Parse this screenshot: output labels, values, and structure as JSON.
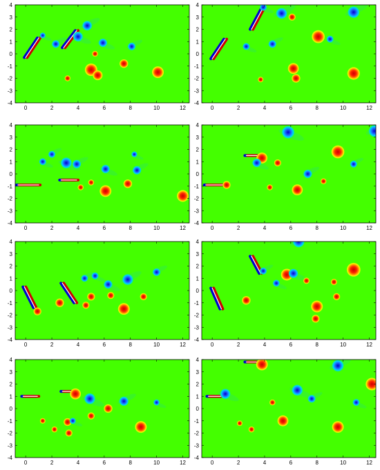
{
  "figure": {
    "panel_count": 8,
    "layout": "4 rows x 2 columns",
    "colormap": [
      "#0000cc",
      "#1f6dff",
      "#00c8ff",
      "#00e8c0",
      "#33ee44",
      "#44ff00",
      "#c8ff00",
      "#ffee00",
      "#ff8800",
      "#ff2200",
      "#cc0000"
    ],
    "background_color": "#44ff00"
  },
  "chart_data": [
    {
      "type": "heatmap",
      "panel": "row1-left",
      "xlim": [
        -0.8,
        12.5
      ],
      "ylim": [
        -4,
        4
      ],
      "x_ticks": [
        "0",
        "2",
        "4",
        "6",
        "8",
        "10",
        "12"
      ],
      "y_ticks": [
        "-4",
        "-3",
        "-2",
        "-1",
        "0",
        "1",
        "2",
        "3",
        "4"
      ],
      "vortices": [
        {
          "x": 5.0,
          "y": -1.3,
          "r": 0.32,
          "sign": 1
        },
        {
          "x": 5.5,
          "y": -1.75,
          "r": 0.25,
          "sign": 1
        },
        {
          "x": 7.5,
          "y": -0.8,
          "r": 0.22,
          "sign": 1
        },
        {
          "x": 10.1,
          "y": -1.5,
          "r": 0.3,
          "sign": 1
        },
        {
          "x": 4.7,
          "y": 2.3,
          "r": 0.25,
          "sign": -1
        },
        {
          "x": 4.0,
          "y": 1.4,
          "r": 0.25,
          "sign": -1
        },
        {
          "x": 2.3,
          "y": 0.8,
          "r": 0.2,
          "sign": -1
        },
        {
          "x": 5.9,
          "y": 0.9,
          "r": 0.22,
          "sign": -1
        },
        {
          "x": 8.1,
          "y": 0.6,
          "r": 0.2,
          "sign": -1
        },
        {
          "x": 3.2,
          "y": -2.0,
          "r": 0.15,
          "sign": 1
        },
        {
          "x": 5.3,
          "y": 0.0,
          "r": 0.15,
          "sign": 1
        },
        {
          "x": 1.3,
          "y": 1.5,
          "r": 0.15,
          "sign": -1
        }
      ],
      "plates": [
        {
          "x1": 0.0,
          "y1": -0.3,
          "x2": 1.0,
          "y2": 1.3
        },
        {
          "x1": 2.9,
          "y1": 0.5,
          "x2": 3.9,
          "y2": 1.9
        }
      ]
    },
    {
      "type": "heatmap",
      "panel": "row1-right",
      "xlim": [
        -0.8,
        12.5
      ],
      "ylim": [
        -4,
        4
      ],
      "x_ticks": [
        "0",
        "2",
        "4",
        "6",
        "8",
        "10",
        "12"
      ],
      "y_ticks": [
        "-4",
        "-3",
        "-2",
        "-1",
        "0",
        "1",
        "2",
        "3",
        "4"
      ],
      "vortices": [
        {
          "x": 8.1,
          "y": 1.4,
          "r": 0.33,
          "sign": 1
        },
        {
          "x": 6.2,
          "y": -1.2,
          "r": 0.28,
          "sign": 1
        },
        {
          "x": 10.8,
          "y": -1.6,
          "r": 0.32,
          "sign": 1
        },
        {
          "x": 6.4,
          "y": -2.0,
          "r": 0.22,
          "sign": 1
        },
        {
          "x": 5.3,
          "y": 3.3,
          "r": 0.28,
          "sign": -1
        },
        {
          "x": 3.9,
          "y": 3.8,
          "r": 0.18,
          "sign": -1
        },
        {
          "x": 10.8,
          "y": 3.4,
          "r": 0.3,
          "sign": -1
        },
        {
          "x": 2.6,
          "y": 0.6,
          "r": 0.18,
          "sign": -1
        },
        {
          "x": 4.6,
          "y": 0.8,
          "r": 0.2,
          "sign": -1
        },
        {
          "x": 9.0,
          "y": 1.2,
          "r": 0.18,
          "sign": -1
        },
        {
          "x": 6.1,
          "y": 3.0,
          "r": 0.18,
          "sign": 1
        },
        {
          "x": 3.7,
          "y": -2.1,
          "r": 0.14,
          "sign": 1
        }
      ],
      "plates": [
        {
          "x1": 0.0,
          "y1": -0.4,
          "x2": 1.0,
          "y2": 1.2
        },
        {
          "x1": 3.0,
          "y1": 2.0,
          "x2": 3.9,
          "y2": 3.8
        }
      ]
    },
    {
      "type": "heatmap",
      "panel": "row2-left",
      "xlim": [
        -0.8,
        12.5
      ],
      "ylim": [
        -4,
        4
      ],
      "x_ticks": [
        "0",
        "2",
        "4",
        "6",
        "8",
        "10",
        "12"
      ],
      "y_ticks": [
        "-4",
        "-3",
        "-2",
        "-1",
        "0",
        "1",
        "2",
        "3",
        "4"
      ],
      "vortices": [
        {
          "x": 6.1,
          "y": -1.4,
          "r": 0.3,
          "sign": 1
        },
        {
          "x": 7.8,
          "y": -0.8,
          "r": 0.22,
          "sign": 1
        },
        {
          "x": 12.0,
          "y": -1.8,
          "r": 0.3,
          "sign": 1
        },
        {
          "x": 3.1,
          "y": 0.9,
          "r": 0.28,
          "sign": -1
        },
        {
          "x": 3.9,
          "y": 0.8,
          "r": 0.22,
          "sign": -1
        },
        {
          "x": 1.3,
          "y": 1.0,
          "r": 0.18,
          "sign": -1
        },
        {
          "x": 2.0,
          "y": 1.6,
          "r": 0.18,
          "sign": -1
        },
        {
          "x": 6.1,
          "y": 0.4,
          "r": 0.22,
          "sign": -1
        },
        {
          "x": 8.5,
          "y": 0.3,
          "r": 0.22,
          "sign": -1
        },
        {
          "x": 5.0,
          "y": -0.7,
          "r": 0.15,
          "sign": 1
        },
        {
          "x": 4.2,
          "y": -1.1,
          "r": 0.15,
          "sign": 1
        },
        {
          "x": 8.3,
          "y": 1.6,
          "r": 0.15,
          "sign": -1
        }
      ],
      "plates": [
        {
          "x1": -0.6,
          "y1": -0.9,
          "x2": 1.0,
          "y2": -0.9
        },
        {
          "x1": 2.7,
          "y1": -0.5,
          "x2": 3.9,
          "y2": -0.5
        }
      ]
    },
    {
      "type": "heatmap",
      "panel": "row2-right",
      "xlim": [
        -0.8,
        12.5
      ],
      "ylim": [
        -4,
        4
      ],
      "x_ticks": [
        "0",
        "2",
        "4",
        "6",
        "8",
        "10",
        "12"
      ],
      "y_ticks": [
        "-4",
        "-3",
        "-2",
        "-1",
        "0",
        "1",
        "2",
        "3",
        "4"
      ],
      "vortices": [
        {
          "x": 9.6,
          "y": 1.8,
          "r": 0.33,
          "sign": 1
        },
        {
          "x": 6.5,
          "y": -1.3,
          "r": 0.28,
          "sign": 1
        },
        {
          "x": 3.8,
          "y": 1.3,
          "r": 0.28,
          "sign": 1
        },
        {
          "x": 5.8,
          "y": 3.4,
          "r": 0.32,
          "sign": -1
        },
        {
          "x": 12.4,
          "y": 3.5,
          "r": 0.3,
          "sign": -1
        },
        {
          "x": 3.4,
          "y": 0.9,
          "r": 0.22,
          "sign": -1
        },
        {
          "x": 7.3,
          "y": 0.0,
          "r": 0.22,
          "sign": -1
        },
        {
          "x": 1.1,
          "y": -0.9,
          "r": 0.2,
          "sign": 1
        },
        {
          "x": 5.0,
          "y": 0.9,
          "r": 0.18,
          "sign": 1
        },
        {
          "x": 8.5,
          "y": -0.6,
          "r": 0.15,
          "sign": 1
        },
        {
          "x": 10.8,
          "y": 0.8,
          "r": 0.18,
          "sign": -1
        },
        {
          "x": 4.4,
          "y": -1.1,
          "r": 0.15,
          "sign": 1
        }
      ],
      "plates": [
        {
          "x1": -0.5,
          "y1": -0.9,
          "x2": 1.0,
          "y2": -0.9
        },
        {
          "x1": 2.6,
          "y1": 1.5,
          "x2": 3.8,
          "y2": 1.5
        }
      ]
    },
    {
      "type": "heatmap",
      "panel": "row3-left",
      "xlim": [
        -0.8,
        12.5
      ],
      "ylim": [
        -4,
        4
      ],
      "x_ticks": [
        "0",
        "2",
        "4",
        "6",
        "8",
        "10",
        "12"
      ],
      "y_ticks": [
        "-4",
        "-3",
        "-2",
        "-1",
        "0",
        "1",
        "2",
        "3",
        "4"
      ],
      "vortices": [
        {
          "x": 7.5,
          "y": -1.5,
          "r": 0.3,
          "sign": 1
        },
        {
          "x": 2.6,
          "y": -1.0,
          "r": 0.22,
          "sign": 1
        },
        {
          "x": 0.9,
          "y": -1.7,
          "r": 0.2,
          "sign": 1
        },
        {
          "x": 4.6,
          "y": -1.2,
          "r": 0.18,
          "sign": 1
        },
        {
          "x": 5.0,
          "y": -0.5,
          "r": 0.2,
          "sign": 1
        },
        {
          "x": 6.5,
          "y": -0.4,
          "r": 0.18,
          "sign": 1
        },
        {
          "x": 7.8,
          "y": 0.9,
          "r": 0.28,
          "sign": -1
        },
        {
          "x": 6.3,
          "y": 0.5,
          "r": 0.22,
          "sign": -1
        },
        {
          "x": 4.5,
          "y": 1.0,
          "r": 0.18,
          "sign": -1
        },
        {
          "x": 5.3,
          "y": 1.2,
          "r": 0.18,
          "sign": -1
        },
        {
          "x": 10.0,
          "y": 1.5,
          "r": 0.2,
          "sign": -1
        },
        {
          "x": 9.0,
          "y": -0.5,
          "r": 0.18,
          "sign": 1
        }
      ],
      "plates": [
        {
          "x1": -0.1,
          "y1": 0.3,
          "x2": 0.7,
          "y2": -1.4
        },
        {
          "x1": 2.8,
          "y1": 0.6,
          "x2": 3.8,
          "y2": -1.0
        }
      ]
    },
    {
      "type": "heatmap",
      "panel": "row3-right",
      "xlim": [
        -0.8,
        12.5
      ],
      "ylim": [
        -4,
        4
      ],
      "x_ticks": [
        "0",
        "2",
        "4",
        "6",
        "8",
        "10",
        "12"
      ],
      "y_ticks": [
        "-4",
        "-3",
        "-2",
        "-1",
        "0",
        "1",
        "2",
        "3",
        "4"
      ],
      "vortices": [
        {
          "x": 10.8,
          "y": 1.7,
          "r": 0.35,
          "sign": 1
        },
        {
          "x": 5.7,
          "y": 1.3,
          "r": 0.3,
          "sign": 1
        },
        {
          "x": 8.0,
          "y": -1.3,
          "r": 0.3,
          "sign": 1
        },
        {
          "x": 2.6,
          "y": -0.8,
          "r": 0.22,
          "sign": 1
        },
        {
          "x": 6.6,
          "y": 4.0,
          "r": 0.3,
          "sign": -1
        },
        {
          "x": 6.2,
          "y": 1.4,
          "r": 0.24,
          "sign": -1
        },
        {
          "x": 3.9,
          "y": 1.6,
          "r": 0.18,
          "sign": -1
        },
        {
          "x": 4.9,
          "y": 0.6,
          "r": 0.18,
          "sign": -1
        },
        {
          "x": 9.5,
          "y": -0.5,
          "r": 0.18,
          "sign": 1
        },
        {
          "x": 7.2,
          "y": 0.8,
          "r": 0.16,
          "sign": 1
        },
        {
          "x": 7.9,
          "y": -2.3,
          "r": 0.2,
          "sign": 1
        },
        {
          "x": 9.3,
          "y": 0.7,
          "r": 0.16,
          "sign": 1
        }
      ],
      "plates": [
        {
          "x1": 0.0,
          "y1": 0.2,
          "x2": 0.7,
          "y2": -1.5
        },
        {
          "x1": 3.0,
          "y1": 2.8,
          "x2": 3.7,
          "y2": 1.4
        }
      ]
    },
    {
      "type": "heatmap",
      "panel": "row4-left",
      "xlim": [
        -0.8,
        12.5
      ],
      "ylim": [
        -4,
        4
      ],
      "x_ticks": [
        "0",
        "2",
        "4",
        "6",
        "8",
        "10",
        "12"
      ],
      "y_ticks": [
        "-4",
        "-3",
        "-2",
        "-1",
        "0",
        "1",
        "2",
        "3",
        "4"
      ],
      "vortices": [
        {
          "x": 8.8,
          "y": -1.5,
          "r": 0.3,
          "sign": 1
        },
        {
          "x": 6.3,
          "y": 0.0,
          "r": 0.22,
          "sign": 1
        },
        {
          "x": 3.8,
          "y": 1.2,
          "r": 0.28,
          "sign": 1
        },
        {
          "x": 3.2,
          "y": -1.1,
          "r": 0.2,
          "sign": 1
        },
        {
          "x": 3.3,
          "y": -2.0,
          "r": 0.18,
          "sign": 1
        },
        {
          "x": 2.2,
          "y": -1.7,
          "r": 0.15,
          "sign": 1
        },
        {
          "x": 5.0,
          "y": -0.6,
          "r": 0.18,
          "sign": 1
        },
        {
          "x": 4.9,
          "y": 0.8,
          "r": 0.28,
          "sign": -1
        },
        {
          "x": 7.5,
          "y": 0.6,
          "r": 0.24,
          "sign": -1
        },
        {
          "x": 3.6,
          "y": -1.0,
          "r": 0.16,
          "sign": -1
        },
        {
          "x": 1.3,
          "y": -1.0,
          "r": 0.14,
          "sign": 1
        },
        {
          "x": 10.0,
          "y": 0.5,
          "r": 0.16,
          "sign": -1
        }
      ],
      "plates": [
        {
          "x1": -0.2,
          "y1": 1.0,
          "x2": 0.9,
          "y2": 1.0
        },
        {
          "x1": 2.8,
          "y1": 1.4,
          "x2": 3.8,
          "y2": 1.4
        }
      ]
    },
    {
      "type": "heatmap",
      "panel": "row4-right",
      "xlim": [
        -0.8,
        12.5
      ],
      "ylim": [
        -4,
        4
      ],
      "x_ticks": [
        "0",
        "2",
        "4",
        "6",
        "8",
        "10",
        "12"
      ],
      "y_ticks": [
        "-4",
        "-3",
        "-2",
        "-1",
        "0",
        "1",
        "2",
        "3",
        "4"
      ],
      "vortices": [
        {
          "x": 12.2,
          "y": 2.0,
          "r": 0.32,
          "sign": 1
        },
        {
          "x": 9.6,
          "y": -1.5,
          "r": 0.3,
          "sign": 1
        },
        {
          "x": 5.4,
          "y": -1.0,
          "r": 0.28,
          "sign": 1
        },
        {
          "x": 3.8,
          "y": 3.6,
          "r": 0.3,
          "sign": 1
        },
        {
          "x": 9.6,
          "y": 3.5,
          "r": 0.3,
          "sign": -1
        },
        {
          "x": 6.5,
          "y": 1.5,
          "r": 0.28,
          "sign": -1
        },
        {
          "x": 7.6,
          "y": 0.8,
          "r": 0.2,
          "sign": -1
        },
        {
          "x": 1.0,
          "y": 1.2,
          "r": 0.26,
          "sign": -1
        },
        {
          "x": 4.6,
          "y": 0.5,
          "r": 0.15,
          "sign": 1
        },
        {
          "x": 3.0,
          "y": -1.7,
          "r": 0.15,
          "sign": 1
        },
        {
          "x": 2.1,
          "y": -1.2,
          "r": 0.14,
          "sign": 1
        },
        {
          "x": 11.0,
          "y": 0.5,
          "r": 0.18,
          "sign": -1
        }
      ],
      "plates": [
        {
          "x1": -0.3,
          "y1": 1.0,
          "x2": 0.9,
          "y2": 1.0
        },
        {
          "x1": 2.6,
          "y1": 3.8,
          "x2": 3.8,
          "y2": 3.8
        }
      ]
    }
  ]
}
